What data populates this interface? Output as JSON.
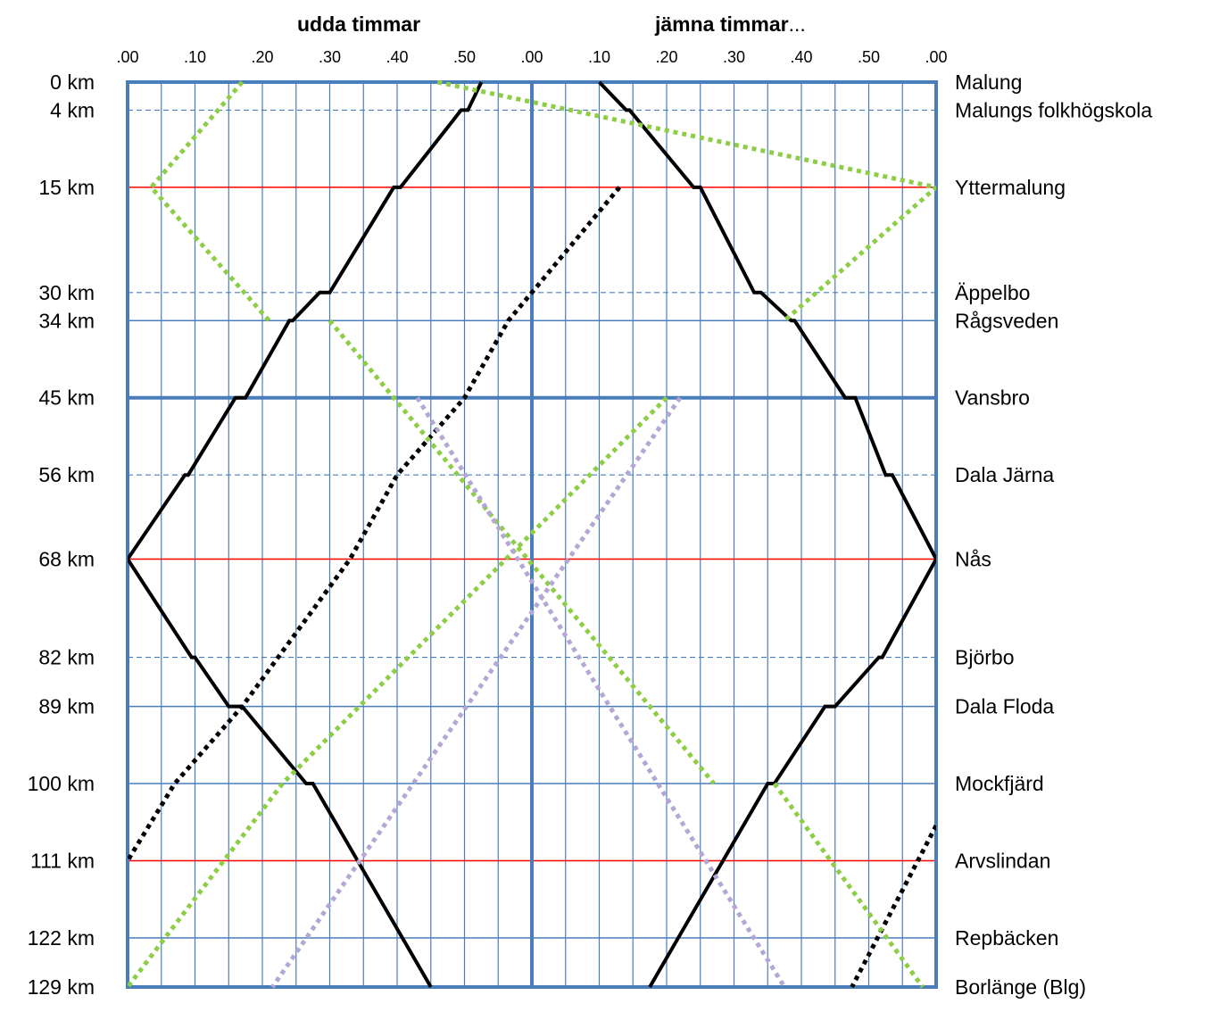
{
  "chart_data": {
    "type": "line",
    "headers": {
      "left": "udda timmar",
      "right_bold": "jämna timmar",
      "right_suffix": "..."
    },
    "x_tick_labels": [
      ".00",
      ".10",
      ".20",
      ".30",
      ".40",
      ".50",
      ".00",
      ".10",
      ".20",
      ".30",
      ".40",
      ".50",
      ".00"
    ],
    "xlim": [
      0,
      120
    ],
    "ylim": [
      0,
      129
    ],
    "y_reversed": true,
    "stations": [
      {
        "km": 0,
        "km_label": "0 km",
        "name": "Malung",
        "line": "none"
      },
      {
        "km": 4,
        "km_label": "4 km",
        "name": "Malungs folkhögskola",
        "line": "dashed"
      },
      {
        "km": 15,
        "km_label": "15 km",
        "name": "Yttermalung",
        "line": "red"
      },
      {
        "km": 30,
        "km_label": "30 km",
        "name": "Äppelbo",
        "line": "dashed"
      },
      {
        "km": 34,
        "km_label": "34 km",
        "name": "Rågsveden",
        "line": "solid"
      },
      {
        "km": 45,
        "km_label": "45 km",
        "name": "Vansbro",
        "line": "bold"
      },
      {
        "km": 56,
        "km_label": "56 km",
        "name": "Dala Järna",
        "line": "dashed"
      },
      {
        "km": 68,
        "km_label": "68 km",
        "name": "Nås",
        "line": "red"
      },
      {
        "km": 82,
        "km_label": "82 km",
        "name": "Björbo",
        "line": "dashed"
      },
      {
        "km": 89,
        "km_label": "89 km",
        "name": "Dala Floda",
        "line": "solid"
      },
      {
        "km": 100,
        "km_label": "100 km",
        "name": "Mockfjärd",
        "line": "solid"
      },
      {
        "km": 111,
        "km_label": "111 km",
        "name": "Arvslindan",
        "line": "red"
      },
      {
        "km": 122,
        "km_label": "122 km",
        "name": "Repbäcken",
        "line": "solid"
      },
      {
        "km": 129,
        "km_label": "129 km",
        "name": "Borlänge (Blg)",
        "line": "solid"
      }
    ],
    "series": [
      {
        "color": "#000000",
        "style": "solid",
        "segments": [
          [
            [
              52.5,
              0
            ],
            [
              50.5,
              4
            ],
            [
              49.5,
              4
            ],
            [
              40.5,
              15
            ],
            [
              39.5,
              15
            ],
            [
              30,
              30
            ],
            [
              28.5,
              30
            ],
            [
              24.5,
              34
            ],
            [
              24,
              34
            ],
            [
              17.5,
              45
            ],
            [
              16,
              45
            ],
            [
              9,
              56
            ],
            [
              8.5,
              56
            ],
            [
              0,
              68
            ],
            [
              9.5,
              82
            ],
            [
              10,
              82
            ],
            [
              15,
              89
            ],
            [
              17,
              89
            ],
            [
              26.5,
              100
            ],
            [
              27.5,
              100
            ],
            [
              45,
              129
            ]
          ]
        ]
      },
      {
        "color": "#000000",
        "style": "solid",
        "segments": [
          [
            [
              70,
              0
            ],
            [
              74,
              4
            ],
            [
              74.5,
              4
            ],
            [
              84,
              15
            ],
            [
              85,
              15
            ],
            [
              93,
              30
            ],
            [
              94,
              30
            ],
            [
              98.5,
              34
            ],
            [
              99,
              34
            ],
            [
              106.5,
              45
            ],
            [
              108,
              45
            ],
            [
              112.5,
              56
            ],
            [
              113.5,
              56
            ],
            [
              120,
              68
            ],
            [
              112,
              82
            ],
            [
              111.5,
              82
            ],
            [
              105,
              89
            ],
            [
              103.5,
              89
            ],
            [
              96,
              100
            ],
            [
              95,
              100
            ],
            [
              77.5,
              129
            ]
          ]
        ]
      },
      {
        "color": "#000000",
        "style": "dotted",
        "segments": [
          [
            [
              73,
              15
            ],
            [
              60,
              30
            ],
            [
              56.5,
              34
            ],
            [
              50,
              45
            ],
            [
              40,
              56
            ],
            [
              33,
              68
            ],
            [
              17,
              89
            ],
            [
              7,
              100
            ],
            [
              0,
              111
            ]
          ],
          [
            [
              120,
              106
            ],
            [
              107.5,
              129
            ]
          ]
        ]
      },
      {
        "color": "#8dce46",
        "style": "dotted",
        "segments": [
          [
            [
              17,
              0
            ],
            [
              3.5,
              15
            ],
            [
              21,
              34
            ]
          ],
          [
            [
              46,
              0
            ],
            [
              120,
              15
            ],
            [
              97.5,
              34
            ]
          ],
          [
            [
              30,
              34
            ],
            [
              87,
              100
            ]
          ],
          [
            [
              80,
              45
            ],
            [
              23,
              100
            ],
            [
              0,
              129
            ]
          ],
          [
            [
              96,
              100
            ],
            [
              118,
              129
            ]
          ]
        ]
      },
      {
        "color": "#b4a7d6",
        "style": "dotted",
        "segments": [
          [
            [
              43,
              45
            ],
            [
              97.5,
              129
            ]
          ],
          [
            [
              82,
              45
            ],
            [
              21.5,
              129
            ]
          ]
        ]
      }
    ]
  }
}
